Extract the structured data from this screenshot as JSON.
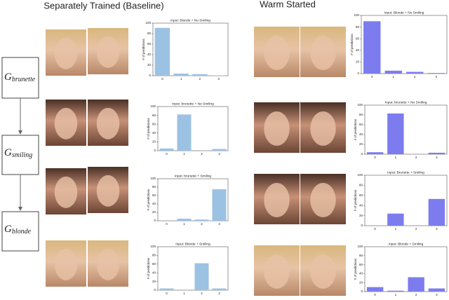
{
  "headings": [
    "Separately Trained (Baseline)",
    "Warm Started"
  ],
  "nodes": [
    {
      "symbol": "G",
      "subscript": "brunette"
    },
    {
      "symbol": "G",
      "subscript": "smiling"
    },
    {
      "symbol": "G",
      "subscript": "blonde"
    }
  ],
  "chart_data": [
    {
      "type": "bar",
      "title": "Input: Blonde + No Smiling",
      "ylabel": "# of predictions",
      "categories": [
        "0",
        "1",
        "2",
        "3"
      ],
      "values": [
        91,
        4,
        3,
        0.5
      ],
      "color": "#9cc2e3",
      "ylim": [
        0,
        100
      ],
      "yticks": [
        0,
        20,
        40,
        60,
        80,
        100
      ]
    },
    {
      "type": "bar",
      "title": "Input: brunette + No Smiling",
      "ylabel": "# of predictions",
      "categories": [
        "0",
        "1",
        "2",
        "3"
      ],
      "values": [
        5,
        82,
        0,
        4
      ],
      "color": "#9cc2e3",
      "ylim": [
        0,
        100
      ],
      "yticks": [
        0,
        20,
        40,
        60,
        80,
        100
      ]
    },
    {
      "type": "bar",
      "title": "Input: brunette + Smiling",
      "ylabel": "# of predictions",
      "categories": [
        "0",
        "1",
        "2",
        "3"
      ],
      "values": [
        0,
        5,
        3,
        75
      ],
      "color": "#9cc2e3",
      "ylim": [
        0,
        100
      ],
      "yticks": [
        0,
        20,
        40,
        60,
        80,
        100
      ]
    },
    {
      "type": "bar",
      "title": "Input: Blonde + Smiling",
      "ylabel": "# of predictions",
      "categories": [
        "0",
        "1",
        "2",
        "3"
      ],
      "values": [
        4,
        0,
        62,
        4
      ],
      "color": "#9cc2e3",
      "ylim": [
        0,
        100
      ],
      "yticks": [
        0,
        20,
        40,
        60,
        80,
        100
      ]
    },
    {
      "type": "bar",
      "title": "Input: Blonde + No Smiling",
      "ylabel": "# of predictions",
      "categories": [
        "0",
        "1",
        "2",
        "3"
      ],
      "values": [
        90,
        5,
        3,
        1
      ],
      "color": "#7c7cef",
      "ylim": [
        0,
        100
      ],
      "yticks": [
        0,
        20,
        40,
        60,
        80,
        100
      ]
    },
    {
      "type": "bar",
      "title": "Input: brunette + No Smiling",
      "ylabel": "# of predictions",
      "categories": [
        "0",
        "1",
        "2",
        "3"
      ],
      "values": [
        4,
        83,
        0,
        3
      ],
      "color": "#7c7cef",
      "ylim": [
        0,
        100
      ],
      "yticks": [
        0,
        20,
        40,
        60,
        80,
        100
      ]
    },
    {
      "type": "bar",
      "title": "Input: Brunette + Smiling",
      "ylabel": "# of predictions",
      "categories": [
        "0",
        "1",
        "2",
        "3"
      ],
      "values": [
        0,
        24,
        0,
        53
      ],
      "color": "#7c7cef",
      "ylim": [
        0,
        100
      ],
      "yticks": [
        0,
        20,
        40,
        60,
        80,
        100
      ]
    },
    {
      "type": "bar",
      "title": "Input: Blonde + Smiling",
      "ylabel": "# of predictions",
      "categories": [
        "0",
        "1",
        "2",
        "3"
      ],
      "values": [
        10,
        2,
        32,
        7
      ],
      "color": "#7c7cef",
      "ylim": [
        0,
        100
      ],
      "yticks": [
        0,
        20,
        40,
        60,
        80,
        100
      ]
    }
  ]
}
